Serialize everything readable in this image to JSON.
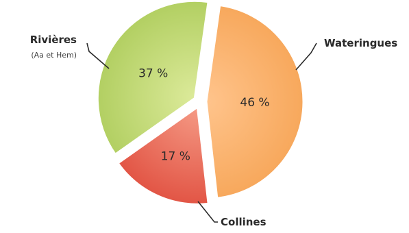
{
  "chart_data": {
    "type": "pie",
    "title": "",
    "slices": [
      {
        "label": "Wateringues",
        "value": 46,
        "value_label": "46 %",
        "color_inner": "#ffc48c",
        "color_outer": "#f7a85c"
      },
      {
        "label": "Collines",
        "value": 17,
        "value_label": "17 %",
        "color_inner": "#f59a85",
        "color_outer": "#e25545"
      },
      {
        "label": "Rivières",
        "sublabel": "(Aa et Hem)",
        "value": 37,
        "value_label": "37 %",
        "color_inner": "#dcea9a",
        "color_outer": "#b2cf62"
      }
    ],
    "start_angle_deg": 8,
    "exploded": true,
    "legend": "none"
  }
}
